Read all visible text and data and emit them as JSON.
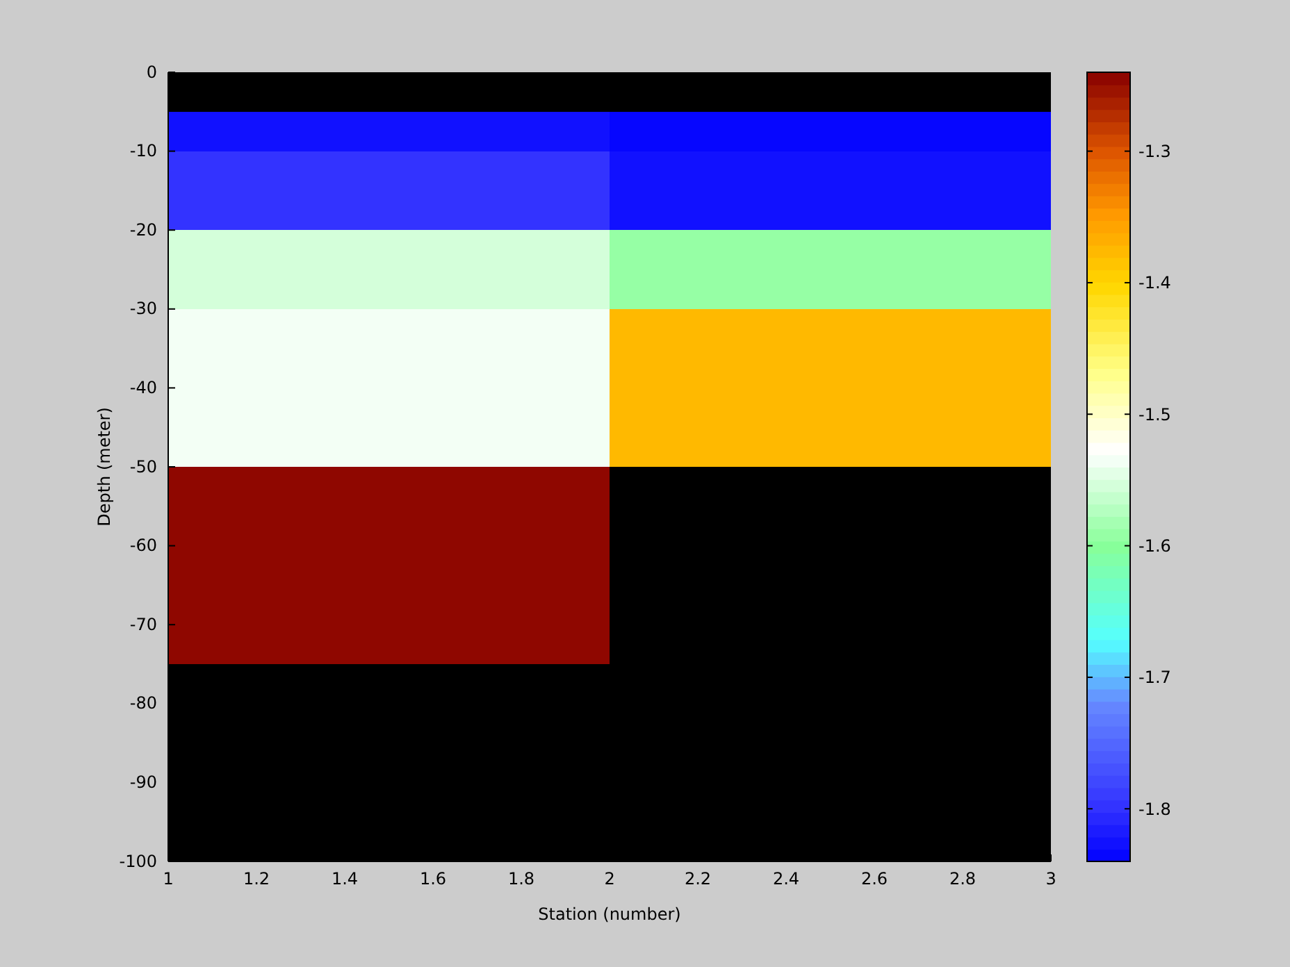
{
  "chart_data": {
    "type": "heatmap",
    "xlabel": "Station (number)",
    "ylabel": "Depth (meter)",
    "x": [
      1.5,
      2.5
    ],
    "y": [
      -7.5,
      -12.5,
      -17.5,
      -22.5,
      -27.5,
      -32.5,
      -37.5,
      -42.5,
      -47.5,
      -52.5,
      -57.5,
      -62.5,
      -67.5,
      -72.5
    ],
    "cells": [
      [
        -1.83,
        -1.84
      ],
      [
        -1.8,
        -1.83
      ],
      [
        -1.8,
        -1.83
      ],
      [
        -1.55,
        -1.59
      ],
      [
        -1.55,
        -1.59
      ],
      [
        -1.54,
        -1.38
      ],
      [
        -1.54,
        -1.38
      ],
      [
        -1.54,
        -1.38
      ],
      [
        -1.54,
        -1.38
      ],
      [
        -1.24,
        null
      ],
      [
        -1.24,
        null
      ],
      [
        -1.24,
        null
      ],
      [
        -1.24,
        null
      ],
      [
        -1.24,
        null
      ]
    ],
    "xlim": [
      1,
      3
    ],
    "xticks": [
      1,
      1.2,
      1.4,
      1.6,
      1.8,
      2,
      2.2,
      2.4,
      2.6,
      2.8,
      3
    ],
    "ylim": [
      -100,
      0
    ],
    "yticks": [
      -100,
      -90,
      -80,
      -70,
      -60,
      -50,
      -40,
      -30,
      -20,
      -10,
      0
    ],
    "clim": [
      -1.84,
      -1.24
    ],
    "cticks": [
      -1.8,
      -1.7,
      -1.6,
      -1.5,
      -1.4,
      -1.3
    ]
  }
}
